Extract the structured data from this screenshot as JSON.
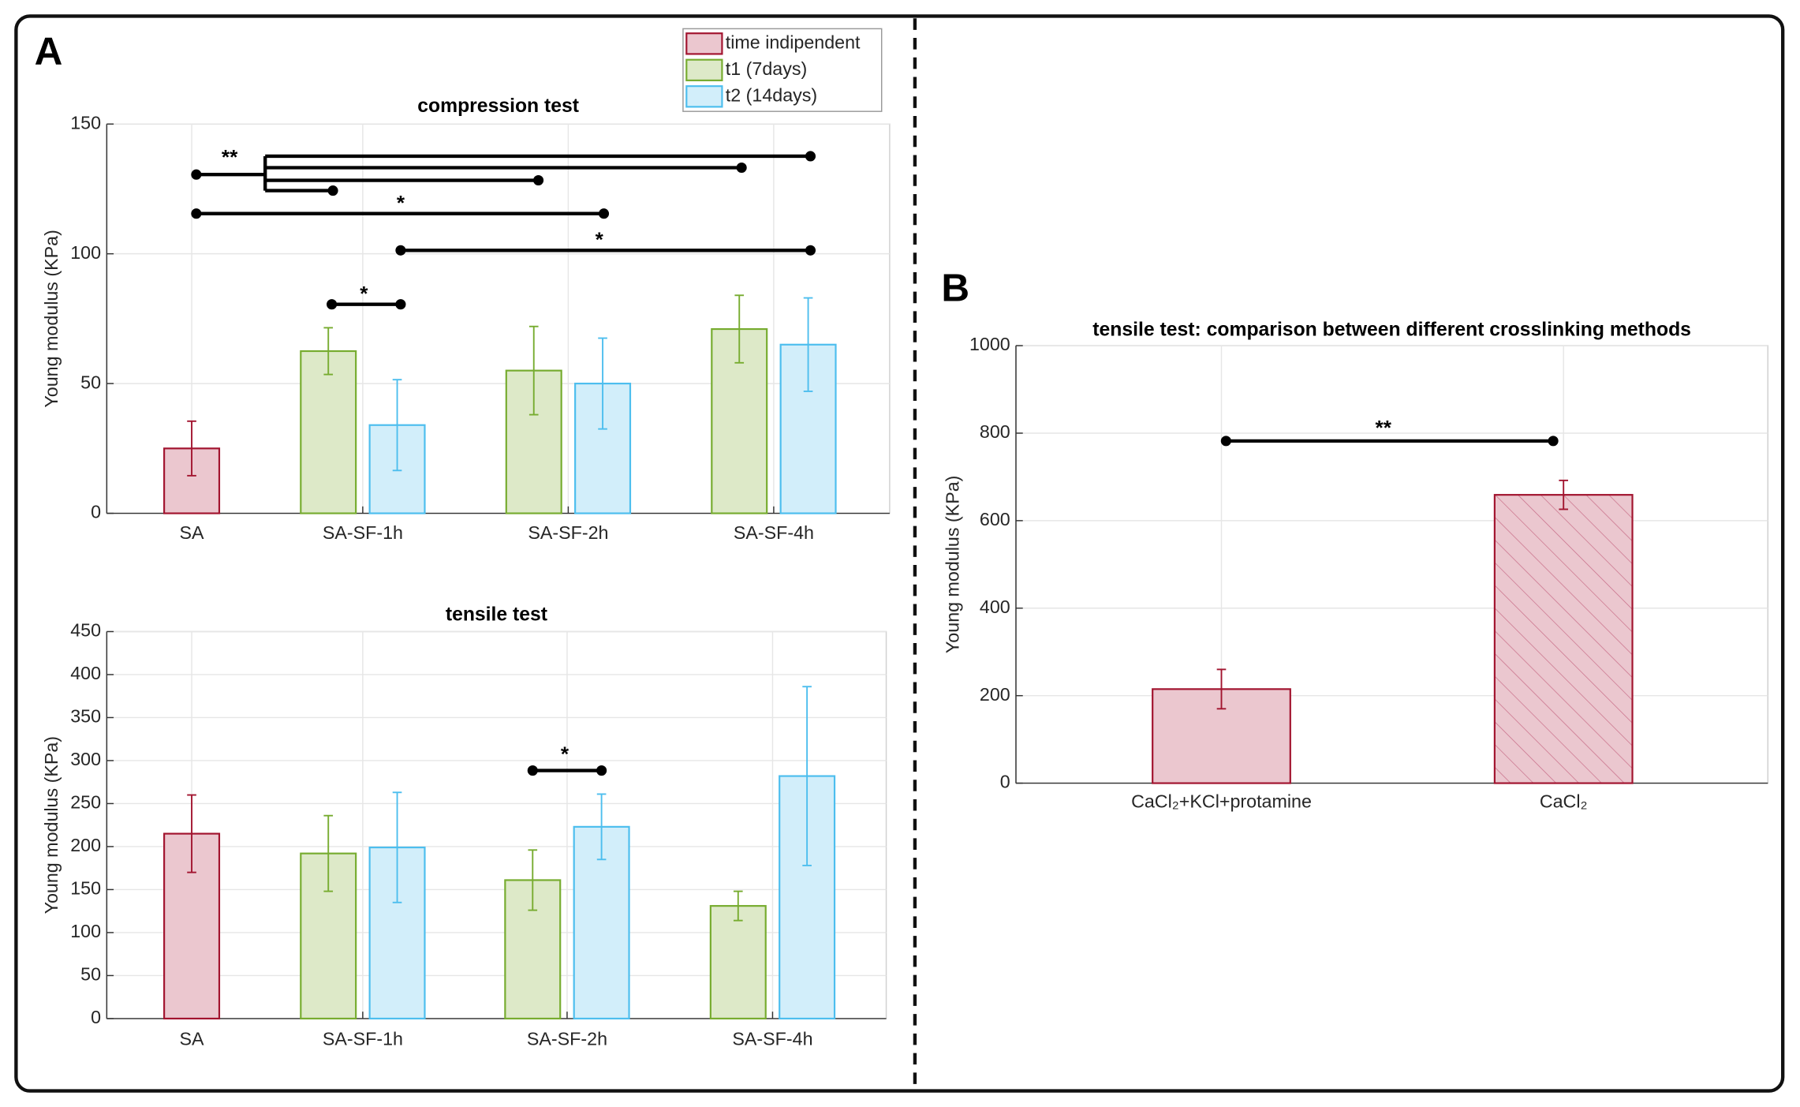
{
  "panel_labels": [
    "A",
    "B"
  ],
  "chart_data": [
    {
      "type": "bar",
      "title": "compression test",
      "y_label": "Young modulus (KPa)",
      "categories": [
        "SA",
        "SA-SF-1h",
        "SA-SF-2h",
        "SA-SF-4h"
      ],
      "series": [
        {
          "name": "time indipendent",
          "color": "#ebc7cf",
          "edge_color": "#a2142f",
          "values": [
            25,
            null,
            null,
            null
          ],
          "errors": [
            10.5,
            null,
            null,
            null
          ]
        },
        {
          "name": "t1 (7days)",
          "color": "#dde9c8",
          "edge_color": "#77ac30",
          "values": [
            null,
            62.5,
            55,
            71
          ],
          "errors": [
            null,
            9,
            17,
            13
          ]
        },
        {
          "name": "t2 (14days)",
          "color": "#d2eefa",
          "edge_color": "#4dbeee",
          "values": [
            null,
            34,
            50,
            65
          ],
          "errors": [
            null,
            17.5,
            17.5,
            18
          ]
        }
      ],
      "ylim": [
        0,
        150
      ],
      "yticks": [
        0,
        50,
        100,
        150
      ],
      "grid": true,
      "legend": "top-right",
      "annotations": [
        "**",
        "*",
        "*",
        "*"
      ]
    },
    {
      "type": "bar",
      "title": "tensile test",
      "y_label": "Young modulus (KPa)",
      "categories": [
        "SA",
        "SA-SF-1h",
        "SA-SF-2h",
        "SA-SF-4h"
      ],
      "series": [
        {
          "name": "time indipendent",
          "color": "#ebc7cf",
          "edge_color": "#a2142f",
          "values": [
            215,
            null,
            null,
            null
          ],
          "errors": [
            45,
            null,
            null,
            null
          ]
        },
        {
          "name": "t1 (7days)",
          "color": "#dde9c8",
          "edge_color": "#77ac30",
          "values": [
            null,
            192,
            161,
            131
          ],
          "errors": [
            null,
            44,
            35,
            17
          ]
        },
        {
          "name": "t2 (14days)",
          "color": "#d2eefa",
          "edge_color": "#4dbeee",
          "values": [
            null,
            199,
            223,
            282
          ],
          "errors": [
            null,
            64,
            38,
            104
          ]
        }
      ],
      "ylim": [
        0,
        450
      ],
      "yticks": [
        0,
        50,
        100,
        150,
        200,
        250,
        300,
        350,
        400,
        450
      ],
      "grid": true,
      "annotations": [
        "*"
      ]
    },
    {
      "type": "bar",
      "title": "tensile test: comparison between different crosslinking methods",
      "y_label": "Young modulus (KPa)",
      "categories": [
        "CaCl₂+KCl+protamine",
        "CaCl₂"
      ],
      "values": [
        215,
        659
      ],
      "errors": [
        45,
        33
      ],
      "color": "#ebc7cf",
      "edge_color": "#a2142f",
      "hatch": [
        false,
        true
      ],
      "ylim": [
        0,
        1000
      ],
      "yticks": [
        0,
        200,
        400,
        600,
        800,
        1000
      ],
      "grid": true,
      "annotations": [
        "**"
      ]
    }
  ]
}
